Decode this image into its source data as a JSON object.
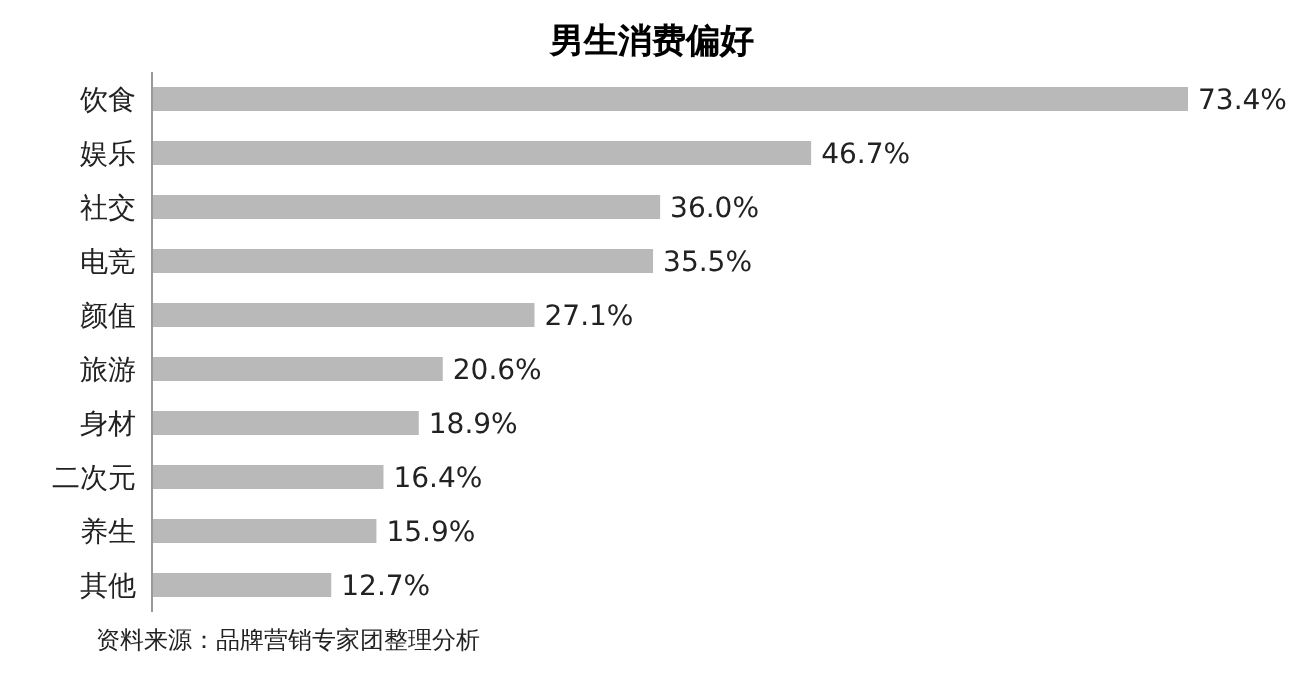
{
  "chart_data": {
    "type": "bar",
    "orientation": "horizontal",
    "title": "男生消费偏好",
    "categories": [
      "饮食",
      "娱乐",
      "社交",
      "电竞",
      "颜值",
      "旅游",
      "身材",
      "二次元",
      "养生",
      "其他"
    ],
    "values": [
      73.4,
      46.7,
      36.0,
      35.5,
      27.1,
      20.6,
      18.9,
      16.4,
      15.9,
      12.7
    ],
    "value_labels": [
      "73.4%",
      "46.7%",
      "36.0%",
      "35.5%",
      "27.1%",
      "20.6%",
      "18.9%",
      "16.4%",
      "15.9%",
      "12.7%"
    ],
    "color": "#b9b9b9",
    "annotations": [
      "资料来源：品牌营销专家团整理分析"
    ]
  }
}
